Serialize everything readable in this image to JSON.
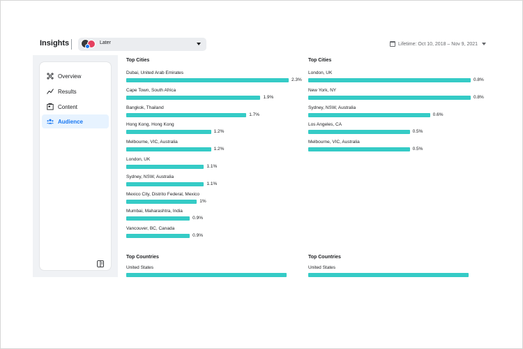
{
  "header": {
    "title": "Insights",
    "page_selector": {
      "avatar_icon": "page-avatar-icon",
      "value": "Later"
    },
    "date_range": "Lifetime: Oct 10, 2018 – Nov 9, 2021"
  },
  "sidebar": {
    "items": [
      {
        "label": "Overview",
        "icon": "overview-icon",
        "active": false
      },
      {
        "label": "Results",
        "icon": "results-icon",
        "active": false
      },
      {
        "label": "Content",
        "icon": "content-icon",
        "active": false
      },
      {
        "label": "Audience",
        "icon": "audience-icon",
        "active": true
      }
    ],
    "footer_icon": "collapse-panel-icon"
  },
  "colors": {
    "bar": "#35cbc6",
    "accent": "#1877f2"
  },
  "top_cities_left": {
    "title": "Top Cities",
    "rows": [
      {
        "label": "Dubai, United Arab Emirates",
        "value": 2.3,
        "display": "2.3%"
      },
      {
        "label": "Cape Town, South Africa",
        "value": 1.9,
        "display": "1.9%"
      },
      {
        "label": "Bangkok, Thailand",
        "value": 1.7,
        "display": "1.7%"
      },
      {
        "label": "Hong Kong, Hong Kong",
        "value": 1.2,
        "display": "1.2%"
      },
      {
        "label": "Melbourne, VIC, Australia",
        "value": 1.2,
        "display": "1.2%"
      },
      {
        "label": "London, UK",
        "value": 1.1,
        "display": "1.1%"
      },
      {
        "label": "Sydney, NSW, Australia",
        "value": 1.1,
        "display": "1.1%"
      },
      {
        "label": "Mexico City, Distrito Federal, Mexico",
        "value": 1.0,
        "display": "1%"
      },
      {
        "label": "Mumbai, Maharashtra, India",
        "value": 0.9,
        "display": "0.9%"
      },
      {
        "label": "Vancouver, BC, Canada",
        "value": 0.9,
        "display": "0.9%"
      }
    ]
  },
  "top_cities_right": {
    "title": "Top Cities",
    "rows": [
      {
        "label": "London, UK",
        "value": 0.8,
        "display": "0.8%"
      },
      {
        "label": "New York, NY",
        "value": 0.8,
        "display": "0.8%"
      },
      {
        "label": "Sydney, NSW, Australia",
        "value": 0.6,
        "display": "0.6%"
      },
      {
        "label": "Los Angeles, CA",
        "value": 0.5,
        "display": "0.5%"
      },
      {
        "label": "Melbourne, VIC, Australia",
        "value": 0.5,
        "display": "0.5%"
      }
    ]
  },
  "top_countries_left": {
    "title": "Top Countries",
    "rows": [
      {
        "label": "United States",
        "value": 2.2,
        "display": ""
      }
    ]
  },
  "top_countries_right": {
    "title": "Top Countries",
    "rows": [
      {
        "label": "United States",
        "value": 2.2,
        "display": ""
      }
    ]
  }
}
